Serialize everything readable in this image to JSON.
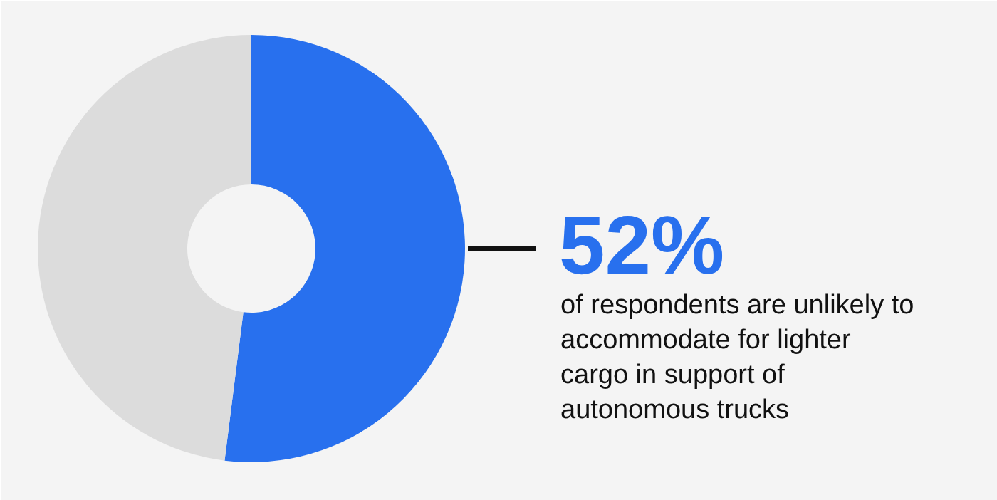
{
  "chart_data": {
    "type": "donut",
    "categories": [
      null,
      null
    ],
    "values": [
      52,
      48
    ],
    "colors": [
      "#2870ee",
      "#dcdcdc"
    ],
    "value_labels": [
      "52%",
      null
    ],
    "annotations": [
      "of respondents are unlikely to\naccommodate for lighter\ncargo in support of\nautonomous trucks"
    ]
  }
}
